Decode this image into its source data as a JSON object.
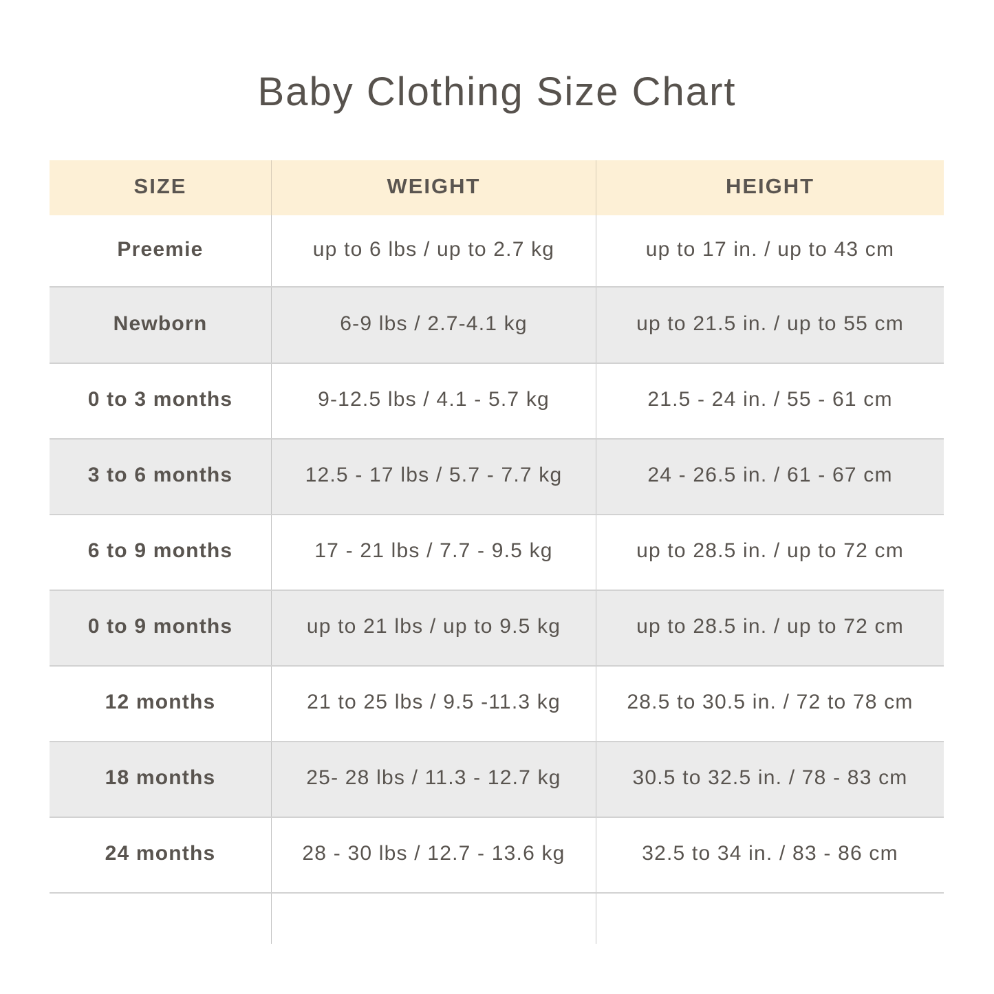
{
  "title": "Baby Clothing Size Chart",
  "colors": {
    "header_bg": "#fdf0d6",
    "alt_row_bg": "#ebebeb",
    "text": "#59544f"
  },
  "columns": [
    "SIZE",
    "WEIGHT",
    "HEIGHT"
  ],
  "rows": [
    {
      "size": "Preemie",
      "weight": "up to 6 lbs / up to 2.7 kg",
      "height": "up to 17 in. / up to 43 cm"
    },
    {
      "size": "Newborn",
      "weight": "6-9 lbs / 2.7-4.1 kg",
      "height": "up to 21.5 in. / up to 55 cm"
    },
    {
      "size": "0 to 3 months",
      "weight": "9-12.5 lbs / 4.1 - 5.7 kg",
      "height": "21.5 - 24 in. / 55 - 61 cm"
    },
    {
      "size": "3 to 6 months",
      "weight": "12.5 - 17 lbs / 5.7 - 7.7 kg",
      "height": "24 - 26.5 in. / 61 - 67 cm"
    },
    {
      "size": "6 to 9 months",
      "weight": "17 - 21 lbs / 7.7 - 9.5 kg",
      "height": "up to 28.5 in. / up to 72 cm"
    },
    {
      "size": "0 to 9 months",
      "weight": "up to 21 lbs / up to 9.5 kg",
      "height": "up to 28.5 in. / up to 72 cm"
    },
    {
      "size": "12 months",
      "weight": "21 to 25 lbs / 9.5 -11.3 kg",
      "height": "28.5 to 30.5 in. / 72 to 78 cm"
    },
    {
      "size": "18 months",
      "weight": "25- 28 lbs / 11.3 - 12.7 kg",
      "height": "30.5 to 32.5 in. / 78 - 83 cm"
    },
    {
      "size": "24 months",
      "weight": "28 - 30 lbs / 12.7 - 13.6 kg",
      "height": "32.5 to 34 in. / 83 - 86 cm"
    }
  ]
}
